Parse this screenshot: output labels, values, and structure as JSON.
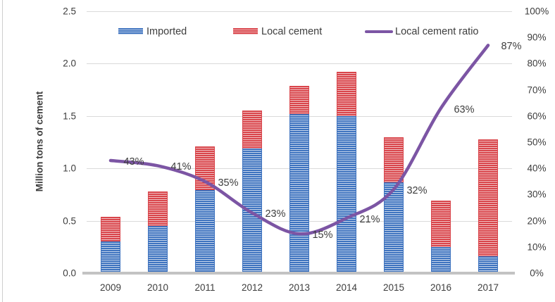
{
  "chart_data": {
    "type": "bar",
    "subtype": "stacked-columns-with-line-overlay",
    "categories": [
      "2009",
      "2010",
      "2011",
      "2012",
      "2013",
      "2014",
      "2015",
      "2016",
      "2017"
    ],
    "series": [
      {
        "name": "Imported",
        "type": "bar",
        "stack": "cement",
        "color": "#3e73bf",
        "stripe_light": "#c7d6ec",
        "values": [
          0.3,
          0.45,
          0.79,
          1.19,
          1.52,
          1.5,
          0.87,
          0.25,
          0.16
        ]
      },
      {
        "name": "Local cement",
        "type": "bar",
        "stack": "cement",
        "color": "#d9454b",
        "stripe_light": "#f1c0c2",
        "values": [
          0.24,
          0.33,
          0.42,
          0.36,
          0.27,
          0.42,
          0.43,
          0.44,
          1.12
        ]
      },
      {
        "name": "Local cement ratio",
        "type": "line",
        "axis": "right",
        "color": "#7c55a4",
        "values": [
          43,
          41,
          35,
          23,
          15,
          21,
          32,
          63,
          87
        ],
        "point_labels": [
          "43%",
          "41%",
          "35%",
          "23%",
          "15%",
          "21%",
          "32%",
          "63%",
          "87%"
        ]
      }
    ],
    "left_axis": {
      "title": "Million tons of cement",
      "tick_labels": [
        "0.0",
        "0.5",
        "1.0",
        "1.5",
        "2.0",
        "2.5"
      ],
      "min": 0,
      "max": 2.5
    },
    "right_axis": {
      "tick_labels": [
        "0%",
        "10%",
        "20%",
        "30%",
        "40%",
        "50%",
        "60%",
        "70%",
        "80%",
        "90%",
        "100%"
      ],
      "min": 0,
      "max": 100
    },
    "legend_position": "top",
    "grid": true,
    "background": "#ffffff",
    "text_color": "#3d3d3d",
    "gridline_color": "#dadada",
    "axis_line_color": "#c3c3c3"
  }
}
